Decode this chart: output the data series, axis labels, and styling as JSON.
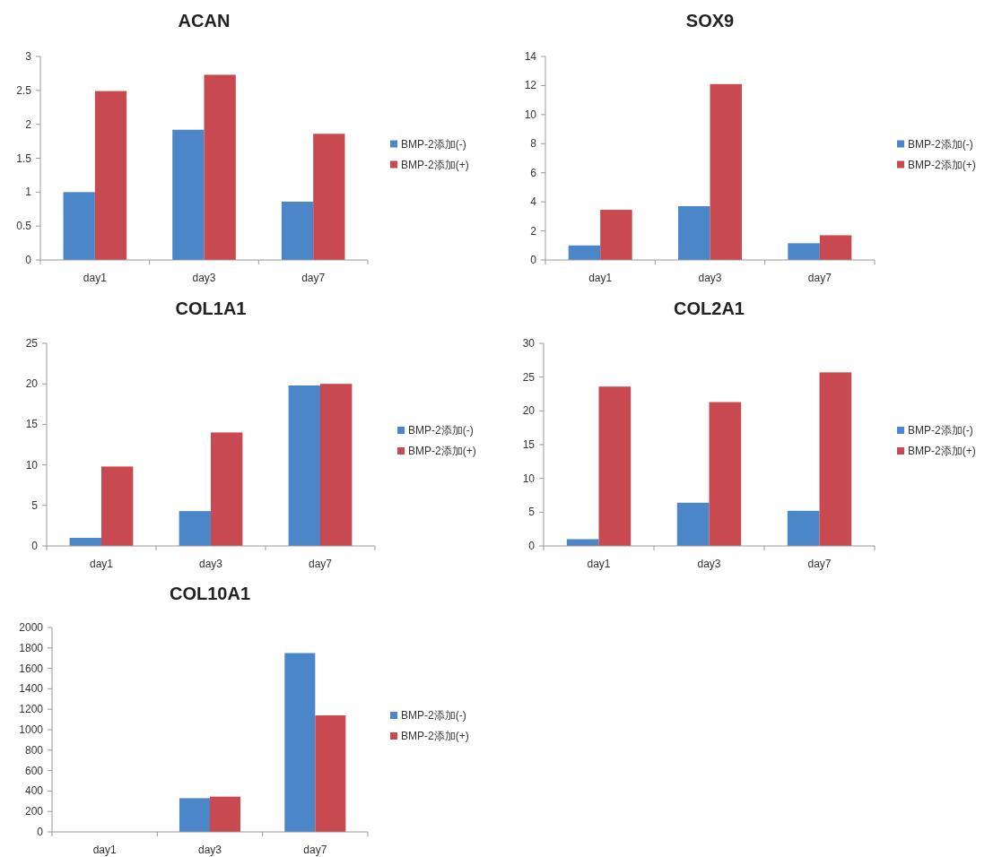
{
  "chart_data": [
    {
      "type": "bar",
      "title": "ACAN",
      "categories": [
        "day1",
        "day3",
        "day7"
      ],
      "ylim": [
        0,
        3
      ],
      "yticks": [
        0,
        0.5,
        1,
        1.5,
        2,
        2.5,
        3
      ],
      "legend": "right",
      "grid": false,
      "series": [
        {
          "name": "BMP-2添加(-)",
          "color": "#4a86c8",
          "values": [
            1.0,
            1.92,
            0.86
          ]
        },
        {
          "name": "BMP-2添加(+)",
          "color": "#c8494f",
          "values": [
            2.49,
            2.73,
            1.86
          ]
        }
      ]
    },
    {
      "type": "bar",
      "title": "SOX9",
      "categories": [
        "day1",
        "day3",
        "day7"
      ],
      "ylim": [
        0,
        14
      ],
      "yticks": [
        0,
        2,
        4,
        6,
        8,
        10,
        12,
        14
      ],
      "legend": "right",
      "grid": false,
      "series": [
        {
          "name": "BMP-2添加(-)",
          "color": "#4a86c8",
          "values": [
            1.0,
            3.7,
            1.15
          ]
        },
        {
          "name": "BMP-2添加(+)",
          "color": "#c8494f",
          "values": [
            3.45,
            12.1,
            1.7
          ]
        }
      ]
    },
    {
      "type": "bar",
      "title": "COL1A1",
      "categories": [
        "day1",
        "day3",
        "day7"
      ],
      "ylim": [
        0,
        25
      ],
      "yticks": [
        0,
        5,
        10,
        15,
        20,
        25
      ],
      "legend": "right",
      "grid": false,
      "series": [
        {
          "name": "BMP-2添加(-)",
          "color": "#4a86c8",
          "values": [
            1.0,
            4.3,
            19.8
          ]
        },
        {
          "name": "BMP-2添加(+)",
          "color": "#c8494f",
          "values": [
            9.8,
            14.0,
            20.0
          ]
        }
      ]
    },
    {
      "type": "bar",
      "title": "COL2A1",
      "categories": [
        "day1",
        "day3",
        "day7"
      ],
      "ylim": [
        0,
        30
      ],
      "yticks": [
        0,
        5,
        10,
        15,
        20,
        25,
        30
      ],
      "legend": "right",
      "grid": false,
      "series": [
        {
          "name": "BMP-2添加(-)",
          "color": "#4a86c8",
          "values": [
            1.0,
            6.4,
            5.2
          ]
        },
        {
          "name": "BMP-2添加(+)",
          "color": "#c8494f",
          "values": [
            23.6,
            21.3,
            25.7
          ]
        }
      ]
    },
    {
      "type": "bar",
      "title": "COL10A1",
      "categories": [
        "day1",
        "day3",
        "day7"
      ],
      "ylim": [
        0,
        2000
      ],
      "yticks": [
        0,
        200,
        400,
        600,
        800,
        1000,
        1200,
        1400,
        1600,
        1800,
        2000
      ],
      "legend": "right",
      "grid": false,
      "series": [
        {
          "name": "BMP-2添加(-)",
          "color": "#4a86c8",
          "values": [
            null,
            330,
            1750
          ]
        },
        {
          "name": "BMP-2添加(+)",
          "color": "#c8494f",
          "values": [
            null,
            345,
            1140
          ]
        }
      ]
    }
  ]
}
